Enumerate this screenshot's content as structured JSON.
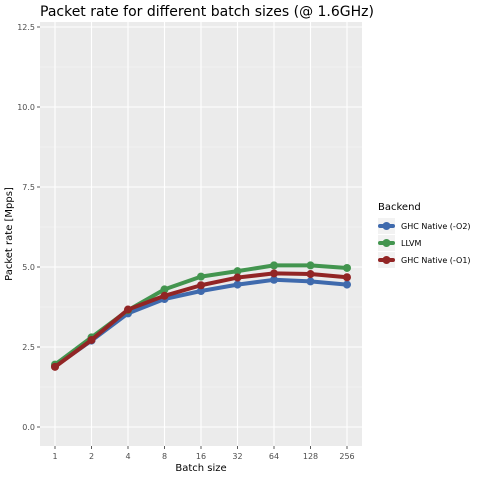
{
  "chart_data": {
    "type": "line",
    "title": "Packet rate for different batch sizes (@ 1.6GHz)",
    "xlabel": "Batch size",
    "ylabel": "Packet rate [Mpps]",
    "categories": [
      "1",
      "2",
      "4",
      "8",
      "16",
      "32",
      "64",
      "128",
      "256"
    ],
    "ylim": [
      0,
      12.5
    ],
    "yticks": [
      0.0,
      2.5,
      5.0,
      7.5,
      10.0,
      12.5
    ],
    "ytick_labels": [
      "0.0",
      "2.5",
      "5.0",
      "7.5",
      "10.0",
      "12.5"
    ],
    "grid": true,
    "legend": {
      "title": "Backend",
      "placement": "right"
    },
    "series": [
      {
        "name": "GHC Native (-O2)",
        "color": "#3f6aad",
        "values": [
          1.9,
          2.7,
          3.55,
          4.0,
          4.25,
          4.45,
          4.6,
          4.55,
          4.45
        ]
      },
      {
        "name": "LLVM",
        "color": "#43954f",
        "values": [
          1.95,
          2.8,
          3.65,
          4.3,
          4.7,
          4.87,
          5.05,
          5.05,
          4.97
        ]
      },
      {
        "name": "GHC Native (-O1)",
        "color": "#922525",
        "values": [
          1.88,
          2.72,
          3.67,
          4.1,
          4.43,
          4.67,
          4.8,
          4.78,
          4.68
        ]
      }
    ]
  }
}
